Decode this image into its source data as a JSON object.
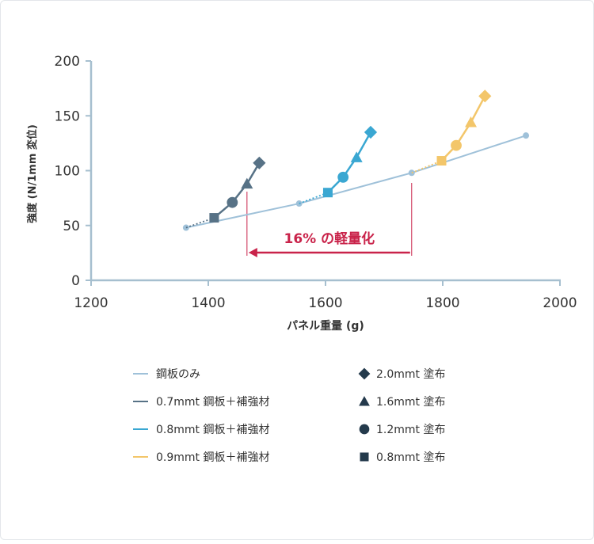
{
  "chart_data": {
    "type": "line",
    "xlabel": "パネル重量 (g)",
    "ylabel": "強度 (N/1mm 変位)",
    "xlim": [
      1200,
      2000
    ],
    "ylim": [
      0,
      200
    ],
    "x_ticks": [
      "1200",
      "1400",
      "1600",
      "1800",
      "2000"
    ],
    "y_ticks": [
      "0",
      "50",
      "100",
      "150",
      "200"
    ],
    "grid": false,
    "legend_position": "bottom",
    "series": [
      {
        "name": "鋼板のみ",
        "color": "#9fc1d9",
        "points": [
          [
            1362,
            48
          ],
          [
            1555,
            70
          ],
          [
            1747,
            98
          ],
          [
            1942,
            132
          ]
        ]
      },
      {
        "name": "0.7mmt 鋼板＋補強材",
        "color": "#577286",
        "start": [
          1362,
          48
        ],
        "points": [
          {
            "x": 1410,
            "y": 57,
            "marker": "square"
          },
          {
            "x": 1441,
            "y": 71,
            "marker": "circle"
          },
          {
            "x": 1466,
            "y": 88,
            "marker": "triangle"
          },
          {
            "x": 1487,
            "y": 107,
            "marker": "diamond"
          }
        ]
      },
      {
        "name": "0.8mmt 鋼板＋補強材",
        "color": "#3aa7d2",
        "start": [
          1555,
          70
        ],
        "points": [
          {
            "x": 1604,
            "y": 80,
            "marker": "square"
          },
          {
            "x": 1630,
            "y": 94,
            "marker": "circle"
          },
          {
            "x": 1653,
            "y": 112,
            "marker": "triangle"
          },
          {
            "x": 1677,
            "y": 135,
            "marker": "diamond"
          }
        ]
      },
      {
        "name": "0.9mmt 鋼板＋補強材",
        "color": "#f3c66a",
        "start": [
          1747,
          98
        ],
        "points": [
          {
            "x": 1798,
            "y": 109,
            "marker": "square"
          },
          {
            "x": 1823,
            "y": 123,
            "marker": "circle"
          },
          {
            "x": 1848,
            "y": 144,
            "marker": "triangle"
          },
          {
            "x": 1872,
            "y": 168,
            "marker": "diamond"
          }
        ]
      }
    ],
    "marker_legend": [
      {
        "marker": "diamond",
        "label": "2.0mmt 塗布"
      },
      {
        "marker": "triangle",
        "label": "1.6mmt 塗布"
      },
      {
        "marker": "circle",
        "label": "1.2mmt 塗布"
      },
      {
        "marker": "square",
        "label": "0.8mmt 塗布"
      }
    ],
    "annotation": {
      "text": "16% の軽量化",
      "from_x": 1747,
      "to_x": 1466,
      "color": "#c9234a"
    }
  }
}
